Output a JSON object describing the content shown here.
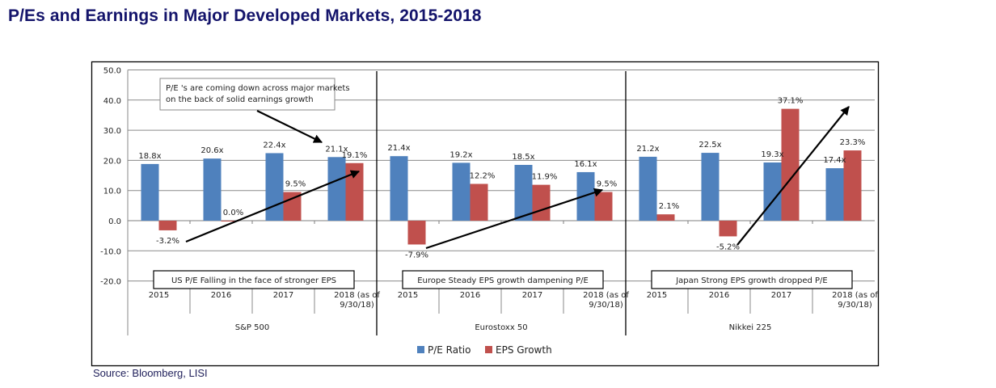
{
  "title": "P/Es and Earnings in Major Developed Markets, 2015-2018",
  "source": "Source: Bloomberg, LISI",
  "chart_data": {
    "type": "bar",
    "title": "P/Es and Earnings in Major Developed Markets, 2015-2018",
    "xlabel": "",
    "ylabel": "",
    "ylim": [
      -20,
      50
    ],
    "yticks": [
      50,
      40,
      30,
      20,
      10,
      0,
      -10,
      -20
    ],
    "ytick_labels": [
      "50.0",
      "40.0",
      "30.0",
      "20.0",
      "10.0",
      "0.0",
      "-10.0",
      "-20.0"
    ],
    "grid": true,
    "legend": {
      "placement": "bottom-center",
      "entries": [
        {
          "name": "P/E Ratio",
          "color": "#4f81bd"
        },
        {
          "name": "EPS Growth",
          "color": "#c0504d"
        }
      ]
    },
    "groups": [
      {
        "name": "S&P 500",
        "categories": [
          "2015",
          "2016",
          "2017",
          "2018 (as of 9/30/18)"
        ],
        "category_lines": [
          [
            "2015"
          ],
          [
            "2016"
          ],
          [
            "2017"
          ],
          [
            "2018 (as of",
            "9/30/18)"
          ]
        ],
        "series": [
          {
            "name": "P/E Ratio",
            "values": [
              18.8,
              20.6,
              22.4,
              21.1
            ],
            "labels": [
              "18.8x",
              "20.6x",
              "22.4x",
              "21.1x"
            ]
          },
          {
            "name": "EPS Growth",
            "values": [
              -3.2,
              0.0,
              9.5,
              19.1
            ],
            "labels": [
              "-3.2%",
              "0.0%",
              "9.5%",
              "19.1%"
            ]
          }
        ],
        "annotation_box": "US P/E Falling in the face of stronger EPS"
      },
      {
        "name": "Eurostoxx 50",
        "categories": [
          "2015",
          "2016",
          "2017",
          "2018 (as of 9/30/18)"
        ],
        "category_lines": [
          [
            "2015"
          ],
          [
            "2016"
          ],
          [
            "2017"
          ],
          [
            "2018 (as of",
            "9/30/18)"
          ]
        ],
        "series": [
          {
            "name": "P/E Ratio",
            "values": [
              21.4,
              19.2,
              18.5,
              16.1
            ],
            "labels": [
              "21.4x",
              "19.2x",
              "18.5x",
              "16.1x"
            ]
          },
          {
            "name": "EPS Growth",
            "values": [
              -7.9,
              12.2,
              11.9,
              9.5
            ],
            "labels": [
              "-7.9%",
              "12.2%",
              "11.9%",
              "9.5%"
            ]
          }
        ],
        "annotation_box": "Europe Steady EPS growth dampening  P/E"
      },
      {
        "name": "Nikkei 225",
        "categories": [
          "2015",
          "2016",
          "2017",
          "2018 (as of 9/30/18)"
        ],
        "category_lines": [
          [
            "2015"
          ],
          [
            "2016"
          ],
          [
            "2017"
          ],
          [
            "2018 (as of",
            "9/30/18)"
          ]
        ],
        "series": [
          {
            "name": "P/E Ratio",
            "values": [
              21.2,
              22.5,
              19.3,
              17.4
            ],
            "labels": [
              "21.2x",
              "22.5x",
              "19.3x",
              "17.4x"
            ]
          },
          {
            "name": "EPS Growth",
            "values": [
              2.1,
              -5.2,
              37.1,
              23.3
            ],
            "labels": [
              "2.1%",
              "-5.2%",
              "37.1%",
              "23.3%"
            ]
          }
        ],
        "annotation_box": "Japan Strong EPS growth dropped P/E"
      }
    ],
    "callout": {
      "lines": [
        "P/E 's are coming down across major markets",
        "on the back of solid earnings growth"
      ]
    }
  }
}
